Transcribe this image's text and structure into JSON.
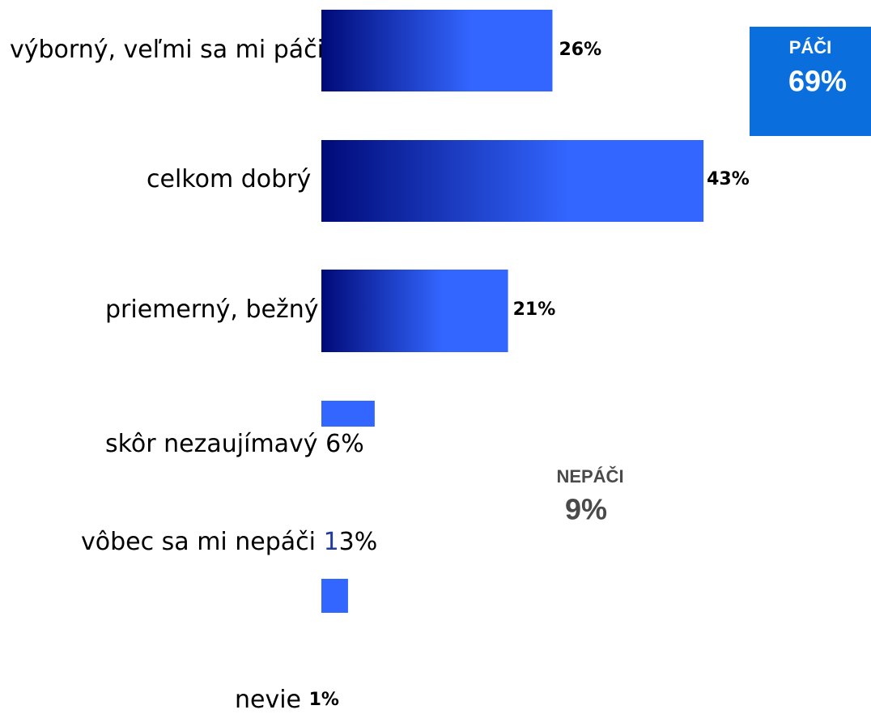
{
  "chart_data": {
    "type": "hbar",
    "categories": [
      "výborný, veľmi sa mi páči",
      "celkom dobrý",
      "priemerný, bežný",
      "skôr nezaujímavý",
      "vôbec sa mi nepáči",
      "nevie"
    ],
    "values": [
      26,
      43,
      21,
      6,
      3,
      1
    ],
    "value_labels": [
      "26%",
      "43%",
      "21%",
      "6%",
      "3%",
      "1%"
    ],
    "color": "#3366ff",
    "gradient_start": "#000a78",
    "stray_text": "1",
    "summary": [
      {
        "label": "PÁČI",
        "value": 69,
        "value_label": "69%",
        "color": "#0a6fdc"
      },
      {
        "label": "NEPÁČI",
        "value": 9,
        "value_label": "9%",
        "color": "#4a4a4a"
      }
    ]
  }
}
